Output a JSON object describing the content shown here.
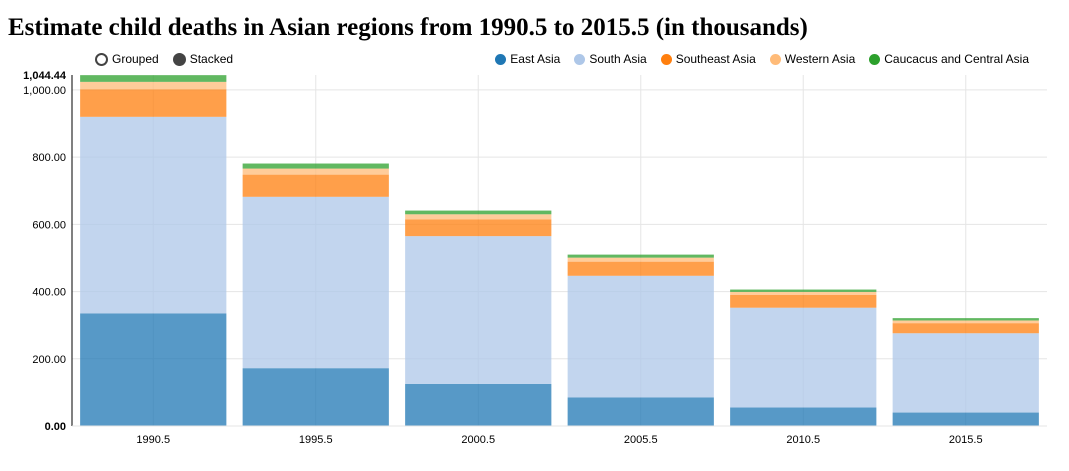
{
  "title": "Estimate child deaths in Asian regions from 1990.5 to 2015.5 (in thousands)",
  "controls": [
    {
      "label": "Grouped",
      "selected": false
    },
    {
      "label": "Stacked",
      "selected": true
    }
  ],
  "chart_data": {
    "type": "bar",
    "stacked": true,
    "title": "Estimate child deaths in Asian regions from 1990.5 to 2015.5 (in thousands)",
    "categories": [
      "1990.5",
      "1995.5",
      "2000.5",
      "2005.5",
      "2010.5",
      "2015.5"
    ],
    "series": [
      {
        "name": "East Asia",
        "color": "#1f77b4",
        "values": [
          335,
          172,
          125,
          85,
          55,
          40
        ]
      },
      {
        "name": "South Asia",
        "color": "#aec7e8",
        "values": [
          585,
          510,
          440,
          362,
          297,
          236
        ]
      },
      {
        "name": "Southeast Asia",
        "color": "#ff7f0e",
        "values": [
          82,
          66,
          50,
          42,
          38,
          30
        ]
      },
      {
        "name": "Western Asia",
        "color": "#ffbb78",
        "values": [
          22,
          18,
          15,
          12,
          9,
          8
        ]
      },
      {
        "name": "Caucacus and Central Asia",
        "color": "#2ca02c",
        "values": [
          20,
          15,
          11,
          9,
          7,
          7
        ]
      }
    ],
    "ylim": [
      0,
      1044.44
    ],
    "yticks": [
      "0.00",
      "200.00",
      "400.00",
      "600.00",
      "800.00",
      "1,000.00"
    ],
    "ymax_label": "1,044.44",
    "grid": true,
    "legend_position": "top-right"
  }
}
